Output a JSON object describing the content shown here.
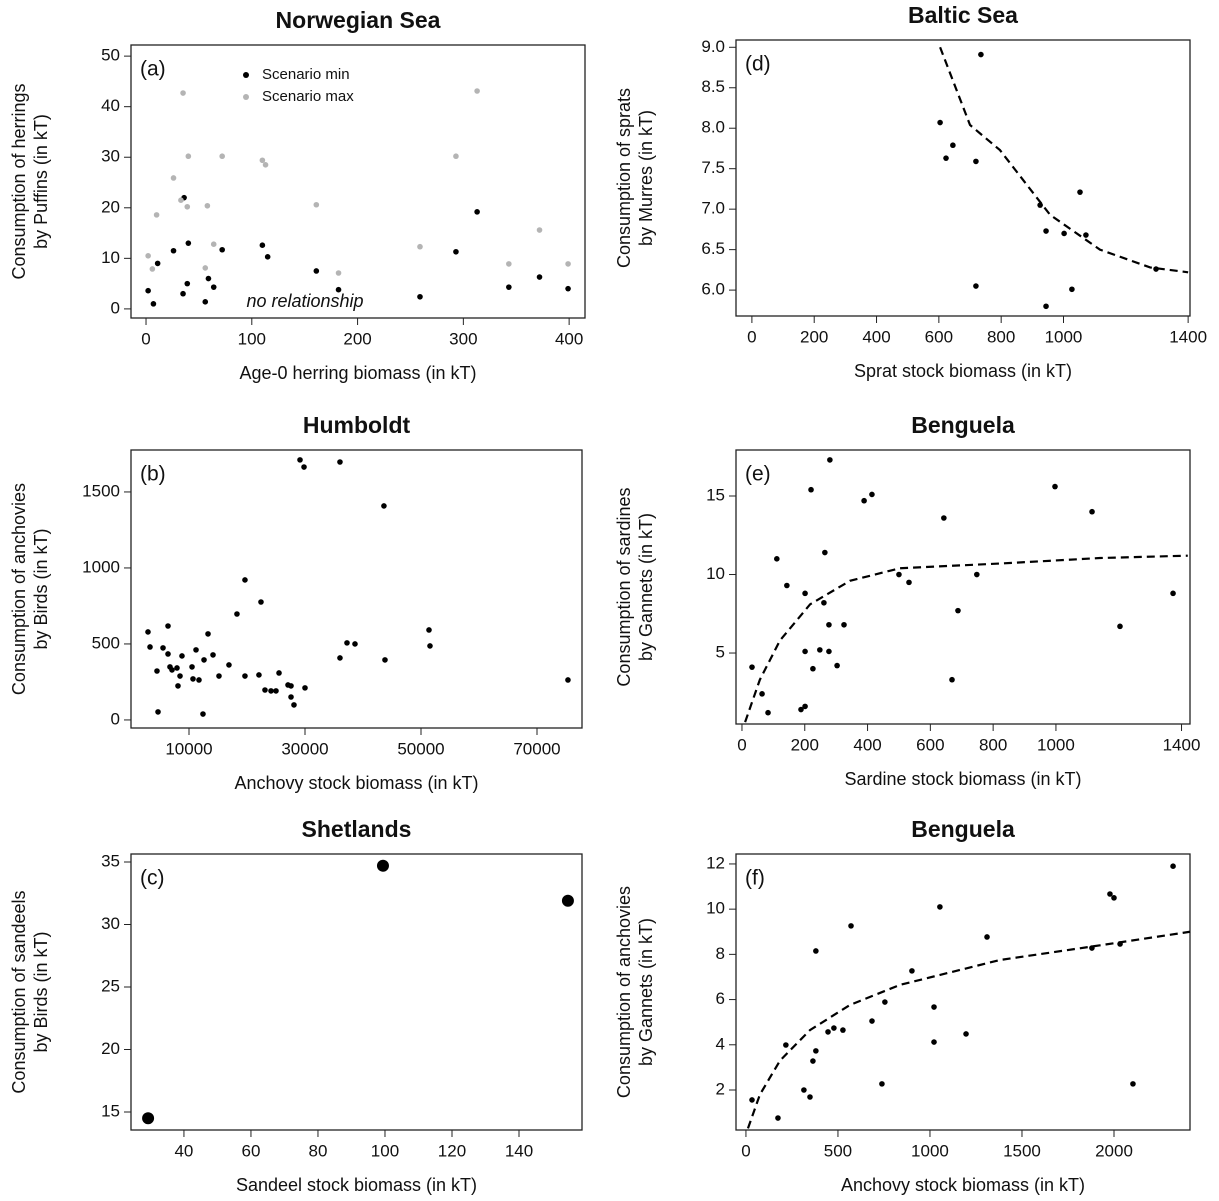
{
  "chart_data": [
    {
      "type": "scatter",
      "title": "Norwegian Sea",
      "label": "(a)",
      "xlabel": "Age-0 herring biomass (in kT)",
      "ylabel": [
        "Consumption of herrings",
        "by Puffins (in kT)"
      ],
      "annotation": "no relationship",
      "xlim": [
        -14.2,
        415
      ],
      "ylim": [
        -1.8,
        52.2
      ],
      "xticks": [
        0,
        100,
        200,
        300,
        400
      ],
      "yticks": [
        0,
        10,
        20,
        30,
        40,
        50
      ],
      "legend": "top",
      "series": [
        {
          "name": "Scenario min",
          "color": "#000000",
          "x": [
            2,
            7,
            11,
            26,
            36,
            40,
            35,
            39,
            56,
            59,
            64,
            72,
            110,
            115,
            161,
            182,
            259,
            293,
            313,
            343,
            372,
            399
          ],
          "y": [
            3.6,
            1,
            9,
            11.5,
            22,
            13,
            3,
            5,
            1.4,
            6,
            4.3,
            11.7,
            12.6,
            10.3,
            7.5,
            3.8,
            2.4,
            11.3,
            19.2,
            4.3,
            6.3,
            4
          ]
        },
        {
          "name": "Scenario max",
          "color": "#b4b4b4",
          "x": [
            2,
            6,
            10,
            26,
            35,
            33,
            39,
            40,
            58,
            56,
            64,
            72,
            110,
            113,
            161,
            182,
            259,
            293,
            313,
            343,
            372,
            399
          ],
          "y": [
            10.5,
            7.9,
            18.6,
            25.9,
            42.7,
            21.5,
            20.2,
            30.2,
            20.4,
            8.1,
            12.8,
            30.2,
            29.4,
            28.5,
            20.6,
            7.1,
            12.3,
            30.2,
            43.1,
            8.9,
            15.6,
            8.9
          ]
        }
      ]
    },
    {
      "type": "scatter",
      "title": "Humboldt",
      "label": "(b)",
      "xlabel": "Anchovy stock biomass (in kT)",
      "ylabel": [
        "Consumption of anchovies",
        "by Birds (in kT)"
      ],
      "xlim": [
        0,
        77760
      ],
      "ylim": [
        -53,
        1776
      ],
      "xticks": [
        10000,
        30000,
        50000,
        70000
      ],
      "yticks": [
        0,
        500,
        1000,
        1500
      ],
      "series": [
        {
          "color": "#000000",
          "x": [
            2930,
            3280,
            4480,
            4660,
            5520,
            6380,
            6380,
            6720,
            7070,
            7930,
            8100,
            8450,
            8790,
            10520,
            10690,
            11210,
            11720,
            12410,
            12590,
            13280,
            14140,
            15170,
            16890,
            18270,
            19650,
            19650,
            22060,
            22410,
            23100,
            24140,
            25000,
            25520,
            27070,
            27590,
            28100,
            27590,
            29140,
            29830,
            30000,
            36030,
            36030,
            37240,
            38620,
            43610,
            43790,
            51380,
            51550,
            75340
          ],
          "y": [
            579,
            480,
            322,
            53,
            474,
            618,
            434,
            349,
            329,
            342,
            224,
            289,
            421,
            349,
            270,
            461,
            263,
            39,
            395,
            566,
            428,
            289,
            362,
            697,
            921,
            289,
            296,
            776,
            197,
            191,
            191,
            309,
            230,
            151,
            99,
            224,
            1711,
            1664,
            211,
            1697,
            408,
            507,
            500,
            1408,
            395,
            592,
            487,
            263
          ]
        }
      ]
    },
    {
      "type": "scatter",
      "title": "Shetlands",
      "label": "(c)",
      "xlabel": "Sandeel stock biomass (in kT)",
      "ylabel": [
        "Consumption of sandeels",
        "by Birds (in kT)"
      ],
      "xlim": [
        24.2,
        158.8
      ],
      "ylim": [
        13.56,
        35.64
      ],
      "xticks": [
        40,
        60,
        80,
        100,
        120,
        140
      ],
      "yticks": [
        15,
        20,
        25,
        30,
        35
      ],
      "series": [
        {
          "color": "#000000",
          "x": [
            29.3,
            99.4,
            154.6
          ],
          "y": [
            14.5,
            34.7,
            31.9
          ]
        }
      ]
    },
    {
      "type": "scatter",
      "title": "Baltic Sea",
      "label": "(d)",
      "xlabel": "Sprat stock biomass (in kT)",
      "ylabel": [
        "Consumption of sprats",
        "by Murres (in kT)"
      ],
      "xlim": [
        -51,
        1406
      ],
      "ylim": [
        5.68,
        9.09
      ],
      "xticks": [
        0,
        200,
        400,
        600,
        800,
        1000,
        1400
      ],
      "yticks": [
        {
          "value": 6,
          "label": "6.0"
        },
        6.5,
        {
          "value": 7,
          "label": "7.0"
        },
        7.5,
        {
          "value": 8,
          "label": "8.0"
        },
        8.5,
        {
          "value": 9,
          "label": "9.0"
        }
      ],
      "series": [
        {
          "color": "#000000",
          "x": [
            735,
            604,
            623,
            645,
            719,
            719,
            925,
            944,
            944,
            1002,
            1027,
            1053,
            1072,
            1297
          ],
          "y": [
            8.91,
            8.07,
            7.63,
            7.79,
            7.59,
            6.05,
            7.05,
            6.73,
            5.8,
            6.7,
            6.01,
            7.21,
            6.68,
            6.26
          ]
        }
      ],
      "curve": {
        "x": [
          604,
          700,
          796,
          957,
          1117,
          1278,
          1400
        ],
        "y": [
          9.0,
          8.04,
          7.73,
          6.93,
          6.5,
          6.28,
          6.22
        ]
      }
    },
    {
      "type": "scatter",
      "title": "Benguela",
      "label": "(e)",
      "xlabel": "Sardine stock biomass (in kT)",
      "ylabel": [
        "Consumption of sardines",
        "by Gannets (in kT)"
      ],
      "xlim": [
        -19,
        1427
      ],
      "ylim": [
        0.48,
        17.93
      ],
      "xticks": [
        0,
        200,
        400,
        600,
        800,
        1000,
        1400
      ],
      "yticks": [
        5,
        10,
        15
      ],
      "series": [
        {
          "color": "#000000",
          "x": [
            32,
            64,
            83,
            111,
            143,
            188,
            201,
            201,
            201,
            220,
            226,
            248,
            261,
            264,
            277,
            280,
            277,
            303,
            325,
            389,
            414,
            500,
            532,
            643,
            669,
            688,
            748,
            997,
            1115,
            1204,
            1373
          ],
          "y": [
            4.1,
            2.4,
            1.2,
            11.0,
            9.3,
            1.4,
            1.6,
            8.8,
            5.1,
            15.4,
            4.0,
            5.2,
            8.2,
            11.4,
            6.8,
            17.3,
            5.1,
            4.2,
            6.8,
            14.7,
            15.1,
            10.0,
            9.5,
            13.6,
            3.3,
            7.7,
            10.0,
            15.6,
            14.0,
            6.7,
            8.8
          ]
        }
      ],
      "curve": {
        "x": [
          10,
          57,
          121,
          217,
          344,
          503,
          822,
          1140,
          1420
        ],
        "y": [
          0.6,
          3.3,
          5.8,
          8.1,
          9.6,
          10.4,
          10.7,
          11.05,
          11.2
        ]
      }
    },
    {
      "type": "scatter",
      "title": "Benguela",
      "label": "(f)",
      "xlabel": "Anchovy stock biomass (in kT)",
      "ylabel": [
        "Consumption of anchovies",
        "by Gannets (in kT)"
      ],
      "xlim": [
        -54,
        2413
      ],
      "ylim": [
        0.23,
        12.44
      ],
      "xticks": [
        0,
        500,
        1000,
        1500,
        2000
      ],
      "yticks": [
        2,
        4,
        6,
        8,
        10,
        12
      ],
      "series": [
        {
          "color": "#000000",
          "x": [
            33,
            174,
            217,
            315,
            348,
            364,
            380,
            380,
            446,
            478,
            527,
            571,
            685,
            755,
            739,
            902,
            1022,
            1022,
            1054,
            1196,
            1310,
            1880,
            1978,
            2000,
            2033,
            2103,
            2321
          ],
          "y": [
            1.56,
            0.76,
            3.99,
            2.0,
            1.69,
            3.28,
            3.73,
            8.15,
            4.57,
            4.74,
            4.65,
            9.26,
            5.05,
            5.89,
            2.27,
            7.27,
            5.67,
            4.12,
            10.1,
            4.48,
            8.77,
            8.28,
            10.67,
            10.5,
            8.46,
            2.27,
            11.9
          ]
        }
      ],
      "curve": {
        "x": [
          11,
          76,
          185,
          348,
          565,
          837,
          1380,
          1924,
          2413
        ],
        "y": [
          0.3,
          1.8,
          3.3,
          4.65,
          5.76,
          6.65,
          7.75,
          8.4,
          9.0
        ]
      }
    }
  ]
}
